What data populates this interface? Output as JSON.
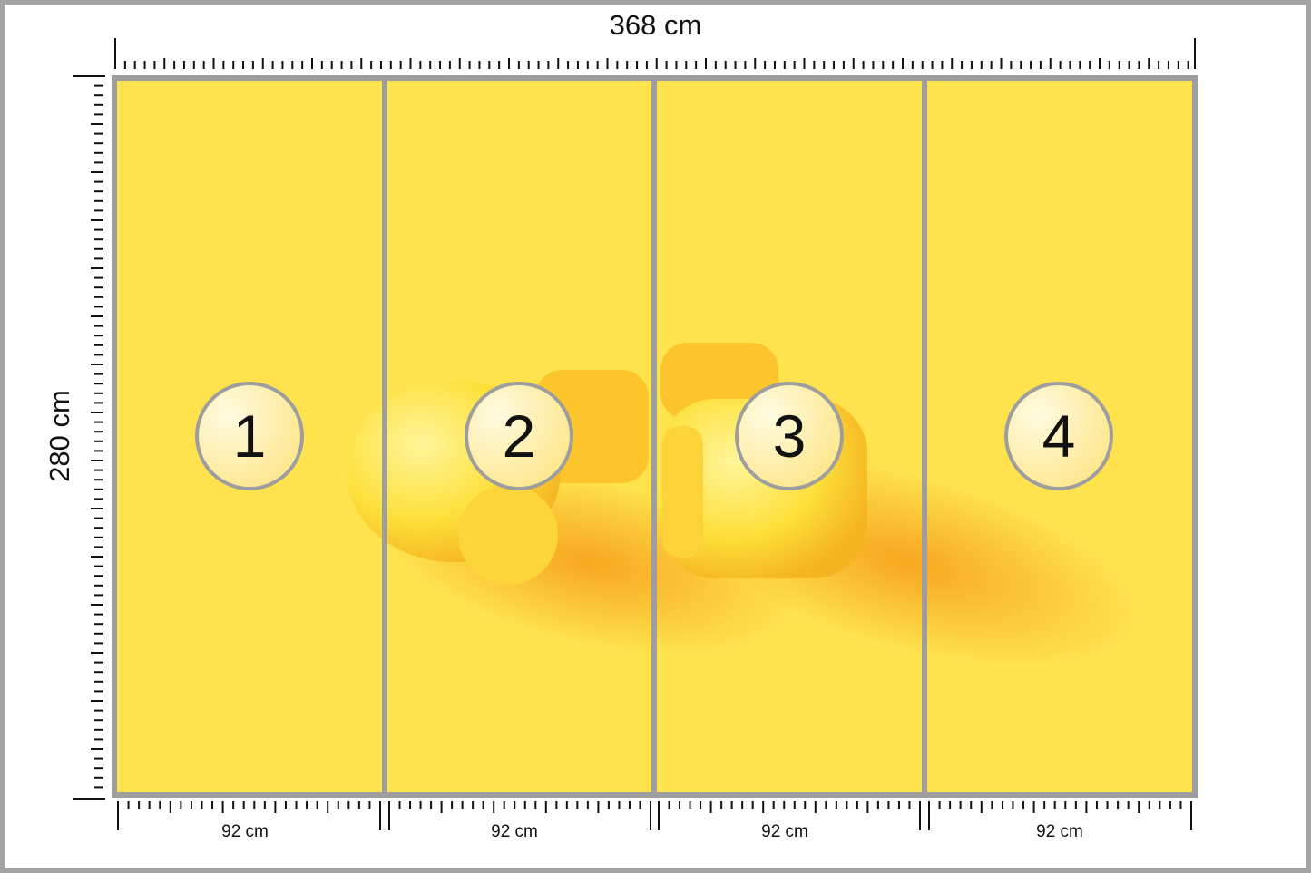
{
  "dimensions": {
    "width_label": "368 cm",
    "height_label": "280 cm"
  },
  "panels": [
    {
      "number": "1",
      "width_label": "92 cm"
    },
    {
      "number": "2",
      "width_label": "92 cm"
    },
    {
      "number": "3",
      "width_label": "92 cm"
    },
    {
      "number": "4",
      "width_label": "92 cm"
    }
  ],
  "colors": {
    "background": "#fee24e",
    "frame": "#9e9e9e",
    "badge": "#fff1b3",
    "glove": "#fde047",
    "shadow": "#f8a81c"
  },
  "image_subject": "yellow boxing gloves on yellow background"
}
